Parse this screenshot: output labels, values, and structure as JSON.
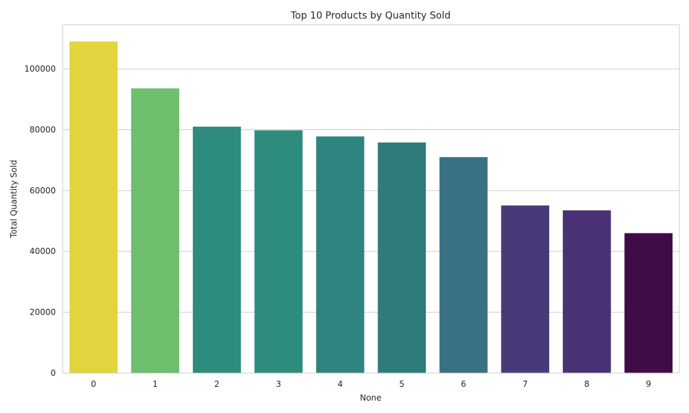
{
  "chart_data": {
    "type": "bar",
    "title": "Top 10 Products by Quantity Sold",
    "xlabel": "None",
    "ylabel": "Total Quantity Sold",
    "categories": [
      "0",
      "1",
      "2",
      "3",
      "4",
      "5",
      "6",
      "7",
      "8",
      "9"
    ],
    "values": [
      109000,
      93600,
      81000,
      79800,
      77800,
      75800,
      71000,
      55100,
      53500,
      46000
    ],
    "colors": [
      "#e2d43e",
      "#6dbe6d",
      "#2e8c7e",
      "#2e8c7e",
      "#2e8580",
      "#2e7b7c",
      "#3a7084",
      "#483a78",
      "#4a3176",
      "#400c47"
    ],
    "yticks": [
      0,
      20000,
      40000,
      60000,
      80000,
      100000
    ],
    "ylim": [
      0,
      114500
    ],
    "grid": true,
    "legend": "none"
  }
}
